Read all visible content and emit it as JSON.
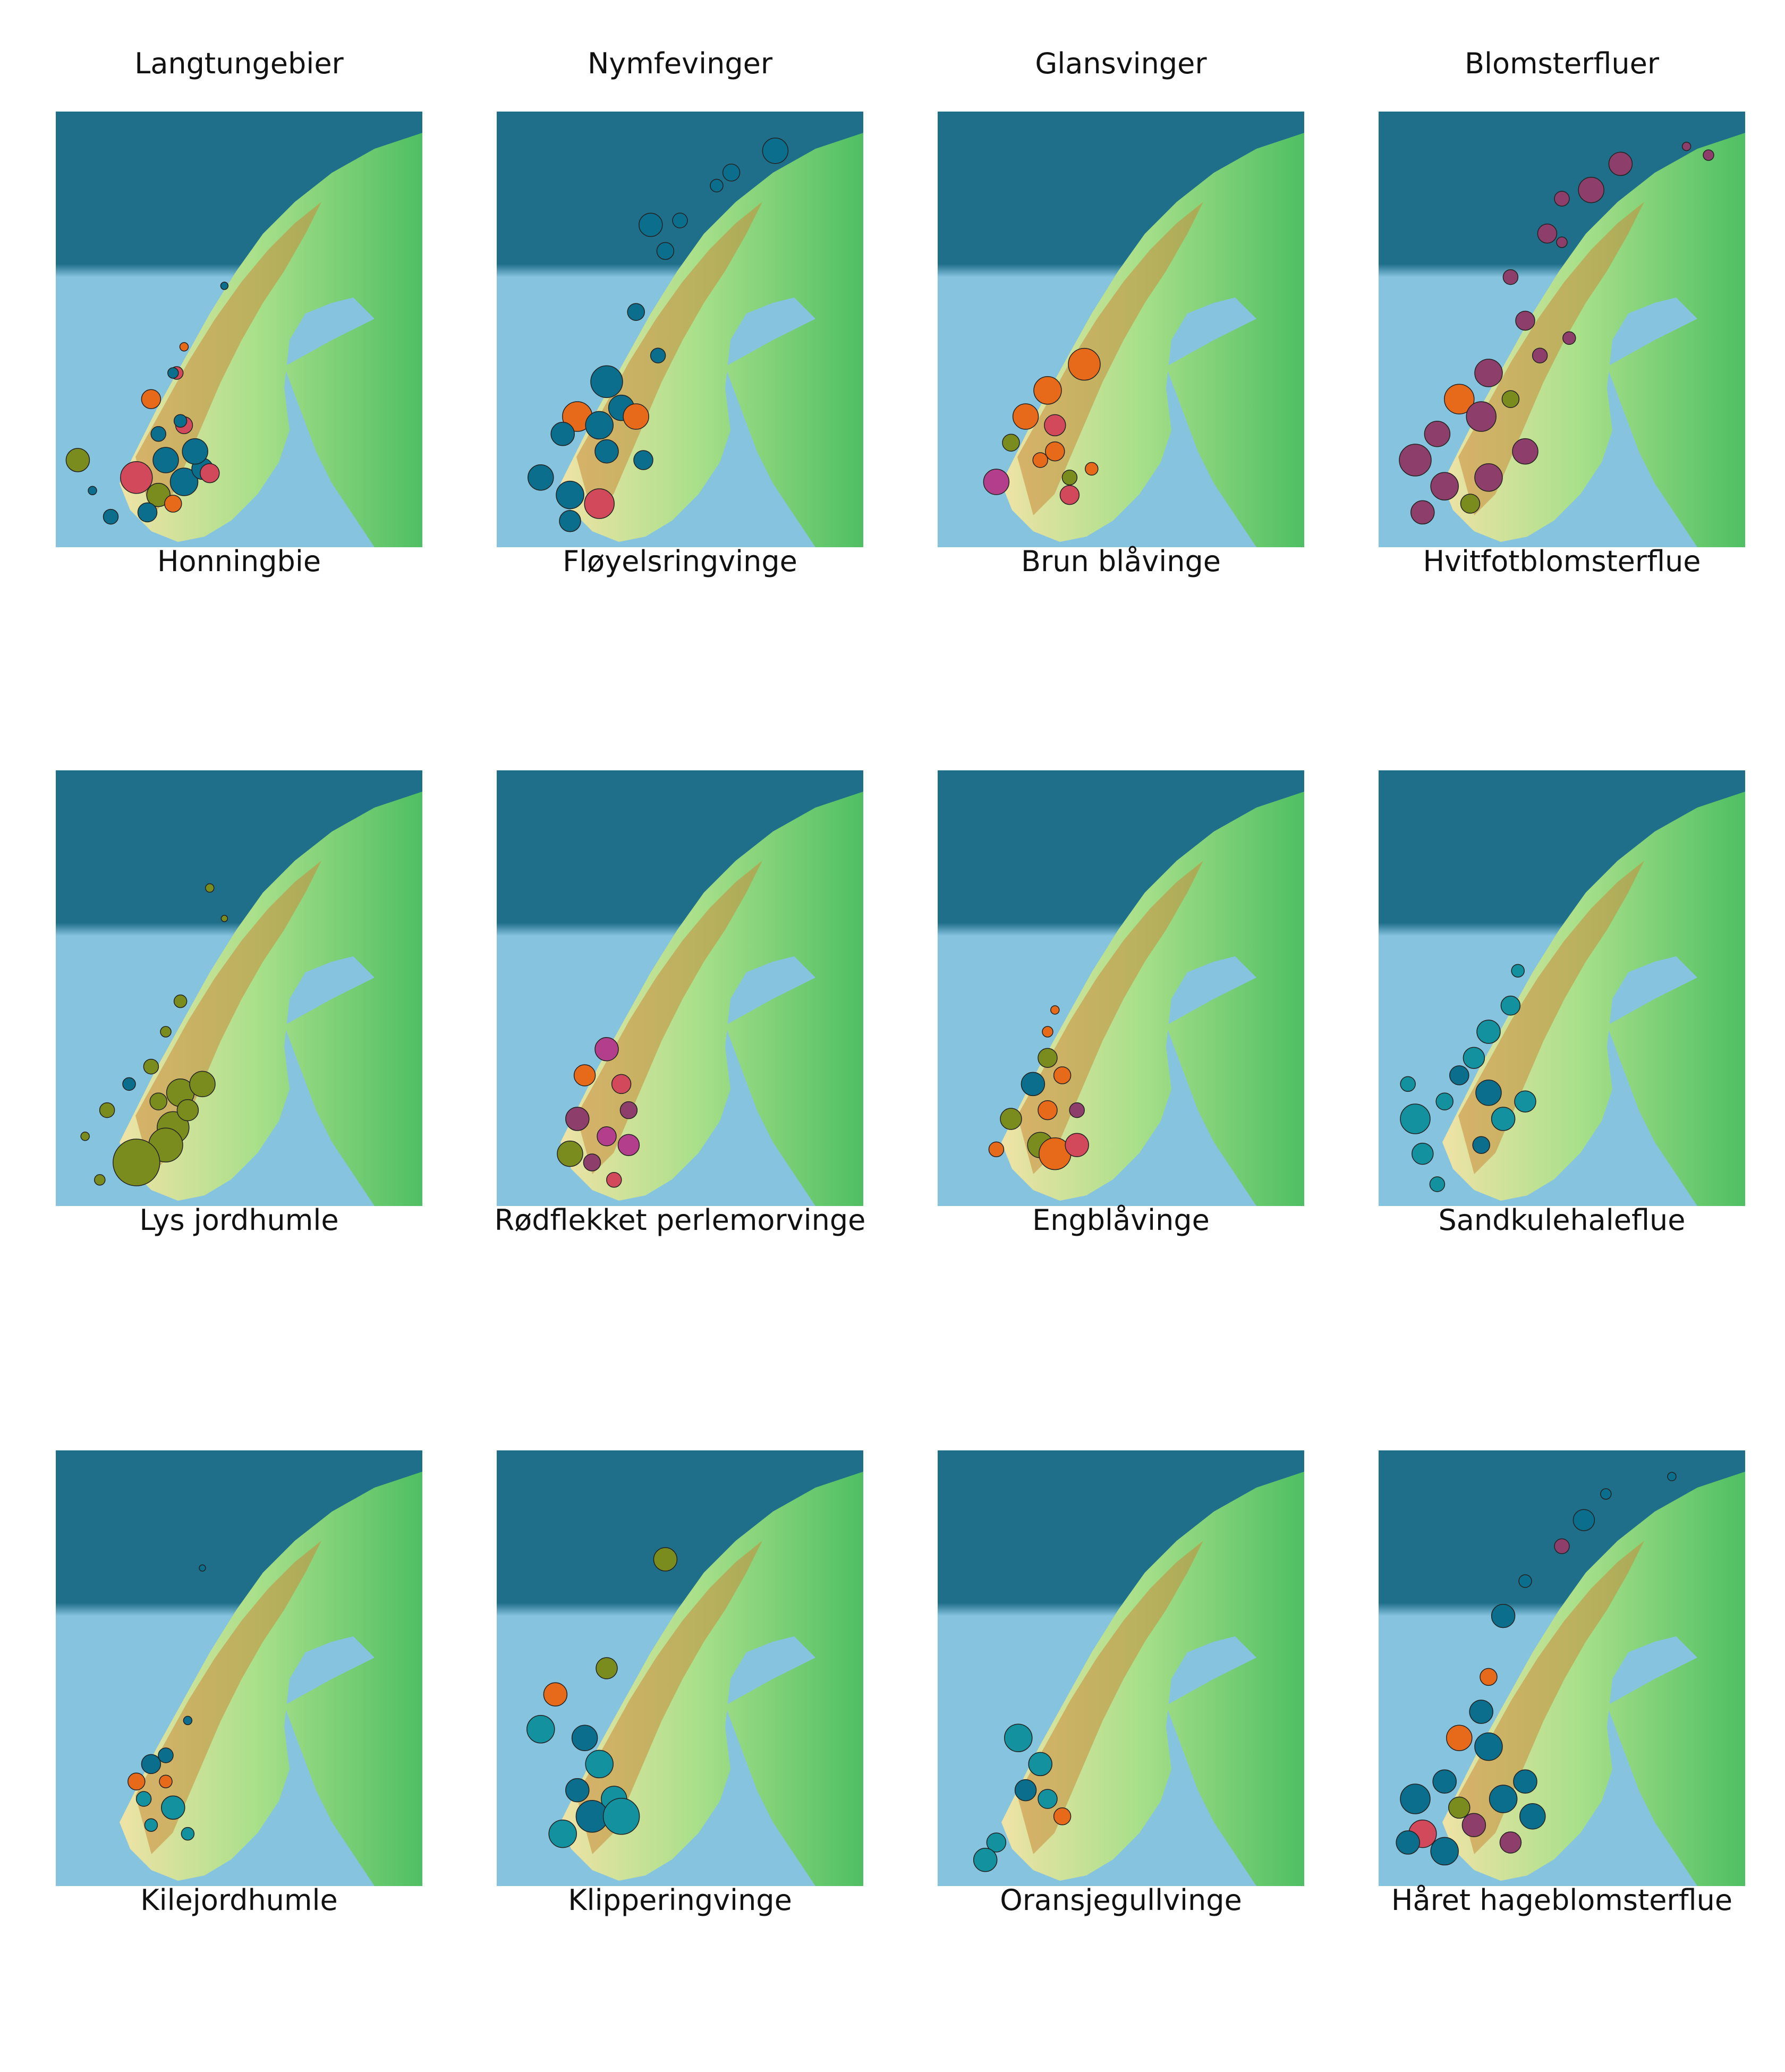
{
  "columns": [
    "Langtungebier",
    "Nymfevinger",
    "Glansvinger",
    "Blomsterfluer"
  ],
  "colors": {
    "sea_dark": "#1f6f8b",
    "sea_light": "#86c3df",
    "land_low": "#4fbf63",
    "land_mid": "#a9e08a",
    "land_high": "#efe3a6",
    "mountain": "#c98a3a",
    "marker_teal": "#0a6e8c",
    "marker_red": "#d1495b",
    "marker_orange": "#e66a1a",
    "marker_olive": "#7a8c1e",
    "marker_plum": "#8e3e6a",
    "marker_magenta": "#b33f8c",
    "marker_cyan": "#13919f"
  },
  "panels": [
    {
      "row": 0,
      "col": 0,
      "species": "Honningbie",
      "markers": [
        [
          0.3,
          0.8,
          24,
          "marker_teal"
        ],
        [
          0.22,
          0.84,
          30,
          "marker_red"
        ],
        [
          0.35,
          0.85,
          26,
          "marker_teal"
        ],
        [
          0.28,
          0.88,
          22,
          "marker_olive"
        ],
        [
          0.4,
          0.82,
          20,
          "marker_teal"
        ],
        [
          0.15,
          0.93,
          14,
          "marker_teal"
        ],
        [
          0.25,
          0.92,
          18,
          "marker_teal"
        ],
        [
          0.32,
          0.9,
          16,
          "marker_orange"
        ],
        [
          0.06,
          0.8,
          22,
          "marker_olive"
        ],
        [
          0.28,
          0.74,
          14,
          "marker_teal"
        ],
        [
          0.35,
          0.72,
          16,
          "marker_red"
        ],
        [
          0.26,
          0.66,
          18,
          "marker_orange"
        ],
        [
          0.34,
          0.71,
          12,
          "marker_teal"
        ],
        [
          0.33,
          0.6,
          12,
          "marker_red"
        ],
        [
          0.46,
          0.4,
          7,
          "marker_teal"
        ],
        [
          0.35,
          0.54,
          8,
          "marker_orange"
        ],
        [
          0.32,
          0.6,
          10,
          "marker_teal"
        ],
        [
          0.1,
          0.87,
          8,
          "marker_teal"
        ],
        [
          0.38,
          0.78,
          24,
          "marker_teal"
        ],
        [
          0.42,
          0.83,
          18,
          "marker_red"
        ]
      ]
    },
    {
      "row": 0,
      "col": 1,
      "species": "Fløyelsringvinge",
      "markers": [
        [
          0.76,
          0.09,
          24,
          "marker_teal"
        ],
        [
          0.64,
          0.14,
          16,
          "marker_teal"
        ],
        [
          0.6,
          0.17,
          12,
          "marker_teal"
        ],
        [
          0.5,
          0.25,
          14,
          "marker_teal"
        ],
        [
          0.42,
          0.26,
          22,
          "marker_teal"
        ],
        [
          0.46,
          0.32,
          16,
          "marker_teal"
        ],
        [
          0.38,
          0.46,
          16,
          "marker_teal"
        ],
        [
          0.3,
          0.62,
          30,
          "marker_teal"
        ],
        [
          0.22,
          0.7,
          28,
          "marker_orange"
        ],
        [
          0.28,
          0.72,
          26,
          "marker_teal"
        ],
        [
          0.18,
          0.74,
          22,
          "marker_teal"
        ],
        [
          0.34,
          0.68,
          24,
          "marker_teal"
        ],
        [
          0.12,
          0.84,
          24,
          "marker_teal"
        ],
        [
          0.2,
          0.88,
          26,
          "marker_teal"
        ],
        [
          0.2,
          0.94,
          20,
          "marker_teal"
        ],
        [
          0.28,
          0.9,
          28,
          "marker_red"
        ],
        [
          0.38,
          0.7,
          24,
          "marker_orange"
        ],
        [
          0.3,
          0.78,
          22,
          "marker_teal"
        ],
        [
          0.4,
          0.8,
          18,
          "marker_teal"
        ],
        [
          0.44,
          0.56,
          14,
          "marker_teal"
        ]
      ]
    },
    {
      "row": 0,
      "col": 2,
      "species": "Brun blåvinge",
      "markers": [
        [
          0.3,
          0.64,
          26,
          "marker_orange"
        ],
        [
          0.24,
          0.7,
          24,
          "marker_orange"
        ],
        [
          0.32,
          0.72,
          20,
          "marker_red"
        ],
        [
          0.2,
          0.76,
          16,
          "marker_olive"
        ],
        [
          0.4,
          0.58,
          30,
          "marker_orange"
        ],
        [
          0.28,
          0.8,
          14,
          "marker_orange"
        ],
        [
          0.16,
          0.85,
          24,
          "marker_magenta"
        ],
        [
          0.32,
          0.78,
          18,
          "marker_orange"
        ],
        [
          0.36,
          0.84,
          14,
          "marker_olive"
        ],
        [
          0.42,
          0.82,
          12,
          "marker_orange"
        ],
        [
          0.36,
          0.88,
          18,
          "marker_red"
        ]
      ]
    },
    {
      "row": 0,
      "col": 3,
      "species": "Hvitfotblomsterflue",
      "markers": [
        [
          0.66,
          0.12,
          22,
          "marker_plum"
        ],
        [
          0.58,
          0.18,
          24,
          "marker_plum"
        ],
        [
          0.5,
          0.2,
          14,
          "marker_plum"
        ],
        [
          0.46,
          0.28,
          18,
          "marker_plum"
        ],
        [
          0.36,
          0.38,
          14,
          "marker_plum"
        ],
        [
          0.4,
          0.48,
          18,
          "marker_plum"
        ],
        [
          0.3,
          0.6,
          26,
          "marker_plum"
        ],
        [
          0.22,
          0.66,
          28,
          "marker_orange"
        ],
        [
          0.28,
          0.7,
          28,
          "marker_plum"
        ],
        [
          0.16,
          0.74,
          24,
          "marker_plum"
        ],
        [
          0.1,
          0.8,
          30,
          "marker_plum"
        ],
        [
          0.18,
          0.86,
          26,
          "marker_plum"
        ],
        [
          0.3,
          0.84,
          26,
          "marker_plum"
        ],
        [
          0.4,
          0.78,
          24,
          "marker_plum"
        ],
        [
          0.12,
          0.92,
          22,
          "marker_plum"
        ],
        [
          0.25,
          0.9,
          18,
          "marker_olive"
        ],
        [
          0.36,
          0.66,
          16,
          "marker_olive"
        ],
        [
          0.44,
          0.56,
          14,
          "marker_plum"
        ],
        [
          0.52,
          0.52,
          12,
          "marker_plum"
        ],
        [
          0.84,
          0.08,
          8,
          "marker_plum"
        ],
        [
          0.9,
          0.1,
          10,
          "marker_plum"
        ],
        [
          0.5,
          0.3,
          10,
          "marker_plum"
        ]
      ]
    },
    {
      "row": 1,
      "col": 0,
      "species": "Lys jordhumle",
      "markers": [
        [
          0.42,
          0.27,
          8,
          "marker_olive"
        ],
        [
          0.46,
          0.34,
          6,
          "marker_olive"
        ],
        [
          0.34,
          0.53,
          12,
          "marker_olive"
        ],
        [
          0.3,
          0.6,
          10,
          "marker_olive"
        ],
        [
          0.26,
          0.68,
          14,
          "marker_olive"
        ],
        [
          0.34,
          0.74,
          26,
          "marker_olive"
        ],
        [
          0.4,
          0.72,
          24,
          "marker_olive"
        ],
        [
          0.32,
          0.82,
          30,
          "marker_olive"
        ],
        [
          0.3,
          0.86,
          32,
          "marker_olive"
        ],
        [
          0.22,
          0.9,
          44,
          "marker_olive"
        ],
        [
          0.14,
          0.78,
          14,
          "marker_olive"
        ],
        [
          0.08,
          0.84,
          8,
          "marker_olive"
        ],
        [
          0.12,
          0.94,
          10,
          "marker_olive"
        ],
        [
          0.2,
          0.72,
          12,
          "marker_teal"
        ],
        [
          0.36,
          0.78,
          20,
          "marker_olive"
        ],
        [
          0.28,
          0.76,
          16,
          "marker_olive"
        ]
      ]
    },
    {
      "row": 1,
      "col": 1,
      "species": "Rødflekket perlemorvinge",
      "markers": [
        [
          0.3,
          0.64,
          22,
          "marker_magenta"
        ],
        [
          0.24,
          0.7,
          20,
          "marker_orange"
        ],
        [
          0.34,
          0.72,
          18,
          "marker_red"
        ],
        [
          0.22,
          0.8,
          22,
          "marker_plum"
        ],
        [
          0.3,
          0.84,
          18,
          "marker_magenta"
        ],
        [
          0.36,
          0.86,
          20,
          "marker_magenta"
        ],
        [
          0.2,
          0.88,
          24,
          "marker_olive"
        ],
        [
          0.26,
          0.9,
          16,
          "marker_plum"
        ],
        [
          0.36,
          0.78,
          16,
          "marker_plum"
        ],
        [
          0.32,
          0.94,
          14,
          "marker_red"
        ]
      ]
    },
    {
      "row": 1,
      "col": 2,
      "species": "Engblåvinge",
      "markers": [
        [
          0.3,
          0.66,
          18,
          "marker_olive"
        ],
        [
          0.26,
          0.72,
          22,
          "marker_teal"
        ],
        [
          0.34,
          0.7,
          16,
          "marker_orange"
        ],
        [
          0.2,
          0.8,
          20,
          "marker_olive"
        ],
        [
          0.3,
          0.78,
          18,
          "marker_orange"
        ],
        [
          0.38,
          0.78,
          14,
          "marker_plum"
        ],
        [
          0.28,
          0.86,
          24,
          "marker_olive"
        ],
        [
          0.16,
          0.87,
          14,
          "marker_orange"
        ],
        [
          0.32,
          0.88,
          30,
          "marker_orange"
        ],
        [
          0.38,
          0.86,
          22,
          "marker_red"
        ],
        [
          0.3,
          0.6,
          10,
          "marker_orange"
        ],
        [
          0.32,
          0.55,
          8,
          "marker_orange"
        ]
      ]
    },
    {
      "row": 1,
      "col": 3,
      "species": "Sandkulehaleflue",
      "markers": [
        [
          0.38,
          0.46,
          12,
          "marker_cyan"
        ],
        [
          0.36,
          0.54,
          18,
          "marker_cyan"
        ],
        [
          0.3,
          0.6,
          22,
          "marker_cyan"
        ],
        [
          0.26,
          0.66,
          20,
          "marker_cyan"
        ],
        [
          0.22,
          0.7,
          18,
          "marker_teal"
        ],
        [
          0.18,
          0.76,
          16,
          "marker_cyan"
        ],
        [
          0.1,
          0.8,
          28,
          "marker_cyan"
        ],
        [
          0.12,
          0.88,
          20,
          "marker_cyan"
        ],
        [
          0.16,
          0.95,
          14,
          "marker_cyan"
        ],
        [
          0.3,
          0.74,
          24,
          "marker_teal"
        ],
        [
          0.34,
          0.8,
          22,
          "marker_cyan"
        ],
        [
          0.4,
          0.76,
          20,
          "marker_cyan"
        ],
        [
          0.28,
          0.86,
          16,
          "marker_teal"
        ],
        [
          0.08,
          0.72,
          14,
          "marker_cyan"
        ]
      ]
    },
    {
      "row": 2,
      "col": 0,
      "species": "Kilejordhumle",
      "markers": [
        [
          0.4,
          0.27,
          6,
          "marker_teal"
        ],
        [
          0.36,
          0.62,
          8,
          "marker_teal"
        ],
        [
          0.3,
          0.7,
          14,
          "marker_teal"
        ],
        [
          0.26,
          0.72,
          18,
          "marker_teal"
        ],
        [
          0.22,
          0.76,
          16,
          "marker_orange"
        ],
        [
          0.3,
          0.76,
          12,
          "marker_orange"
        ],
        [
          0.32,
          0.82,
          22,
          "marker_cyan"
        ],
        [
          0.24,
          0.8,
          14,
          "marker_cyan"
        ],
        [
          0.26,
          0.86,
          12,
          "marker_cyan"
        ],
        [
          0.36,
          0.88,
          12,
          "marker_cyan"
        ]
      ]
    },
    {
      "row": 2,
      "col": 1,
      "species": "Klipperingvinge",
      "markers": [
        [
          0.46,
          0.25,
          22,
          "marker_olive"
        ],
        [
          0.3,
          0.5,
          20,
          "marker_olive"
        ],
        [
          0.16,
          0.56,
          22,
          "marker_orange"
        ],
        [
          0.12,
          0.64,
          26,
          "marker_cyan"
        ],
        [
          0.24,
          0.66,
          24,
          "marker_teal"
        ],
        [
          0.28,
          0.72,
          26,
          "marker_cyan"
        ],
        [
          0.32,
          0.8,
          24,
          "marker_cyan"
        ],
        [
          0.26,
          0.84,
          30,
          "marker_teal"
        ],
        [
          0.18,
          0.88,
          26,
          "marker_cyan"
        ],
        [
          0.34,
          0.84,
          34,
          "marker_cyan"
        ],
        [
          0.22,
          0.78,
          22,
          "marker_teal"
        ]
      ]
    },
    {
      "row": 2,
      "col": 2,
      "species": "Oransjegullvinge",
      "markers": [
        [
          0.22,
          0.66,
          26,
          "marker_cyan"
        ],
        [
          0.28,
          0.72,
          22,
          "marker_cyan"
        ],
        [
          0.24,
          0.78,
          20,
          "marker_teal"
        ],
        [
          0.3,
          0.8,
          18,
          "marker_cyan"
        ],
        [
          0.34,
          0.84,
          16,
          "marker_orange"
        ],
        [
          0.16,
          0.9,
          18,
          "marker_cyan"
        ],
        [
          0.13,
          0.94,
          22,
          "marker_cyan"
        ]
      ]
    },
    {
      "row": 2,
      "col": 3,
      "species": "Håret hageblomsterflue",
      "markers": [
        [
          0.8,
          0.06,
          8,
          "marker_teal"
        ],
        [
          0.62,
          0.1,
          10,
          "marker_teal"
        ],
        [
          0.56,
          0.16,
          20,
          "marker_teal"
        ],
        [
          0.5,
          0.22,
          14,
          "marker_plum"
        ],
        [
          0.4,
          0.3,
          12,
          "marker_teal"
        ],
        [
          0.34,
          0.38,
          22,
          "marker_teal"
        ],
        [
          0.3,
          0.52,
          16,
          "marker_orange"
        ],
        [
          0.28,
          0.6,
          22,
          "marker_teal"
        ],
        [
          0.22,
          0.66,
          24,
          "marker_orange"
        ],
        [
          0.3,
          0.68,
          26,
          "marker_teal"
        ],
        [
          0.18,
          0.76,
          22,
          "marker_teal"
        ],
        [
          0.1,
          0.8,
          28,
          "marker_teal"
        ],
        [
          0.12,
          0.88,
          26,
          "marker_red"
        ],
        [
          0.18,
          0.92,
          26,
          "marker_teal"
        ],
        [
          0.26,
          0.86,
          22,
          "marker_plum"
        ],
        [
          0.34,
          0.8,
          26,
          "marker_teal"
        ],
        [
          0.4,
          0.76,
          22,
          "marker_teal"
        ],
        [
          0.36,
          0.9,
          20,
          "marker_plum"
        ],
        [
          0.42,
          0.84,
          24,
          "marker_teal"
        ],
        [
          0.08,
          0.9,
          22,
          "marker_teal"
        ],
        [
          0.22,
          0.82,
          20,
          "marker_olive"
        ]
      ]
    }
  ]
}
